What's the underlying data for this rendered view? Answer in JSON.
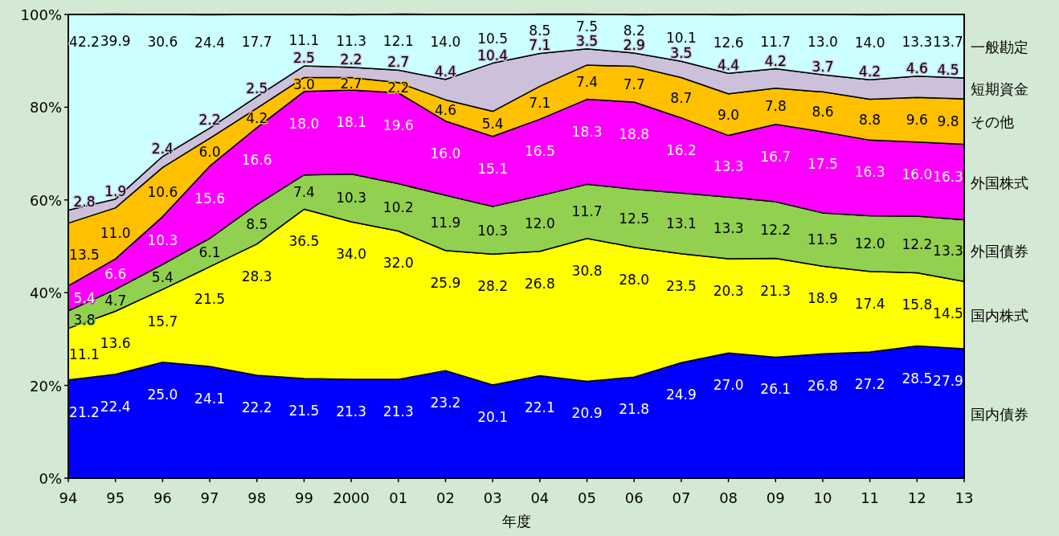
{
  "chart_data": {
    "type": "area",
    "stacked": true,
    "xlabel": "年度",
    "categories": [
      "94",
      "95",
      "96",
      "97",
      "98",
      "99",
      "2000",
      "01",
      "02",
      "03",
      "04",
      "05",
      "06",
      "07",
      "08",
      "09",
      "10",
      "11",
      "12",
      "13"
    ],
    "ylim": [
      0,
      100
    ],
    "yticks": [
      {
        "value": 0,
        "label": "0%"
      },
      {
        "value": 20,
        "label": "20%"
      },
      {
        "value": 40,
        "label": "40%"
      },
      {
        "value": 60,
        "label": "60%"
      },
      {
        "value": 80,
        "label": "80%"
      },
      {
        "value": 100,
        "label": "100%"
      }
    ],
    "grid": false,
    "series": [
      {
        "name": "国内債券",
        "color": "#0000ff",
        "values": [
          21.2,
          22.4,
          25.0,
          24.1,
          22.2,
          21.5,
          21.3,
          21.3,
          23.2,
          20.1,
          22.1,
          20.9,
          21.8,
          24.9,
          27.0,
          26.1,
          26.8,
          27.2,
          28.5,
          27.9
        ],
        "value_labels": [
          "21.2",
          "22.4",
          "25.0",
          "24.1",
          "22.2",
          "21.5",
          "21.3",
          "21.3",
          "23.2",
          "20.1",
          "22.1",
          "20.9",
          "21.8",
          "24.9",
          "27.0",
          "26.1",
          "26.8",
          "27.2",
          "28.5",
          "27.9"
        ]
      },
      {
        "name": "国内株式",
        "color": "#ffff00",
        "values": [
          11.1,
          13.6,
          15.7,
          21.5,
          28.3,
          36.5,
          34.0,
          32.0,
          25.9,
          28.2,
          26.8,
          30.8,
          28.0,
          23.5,
          20.3,
          21.3,
          18.9,
          17.4,
          15.8,
          14.5
        ],
        "value_labels": [
          "11.1",
          "13.6",
          "15.7",
          "21.5",
          "28.3",
          "36.5",
          "34.0",
          "32.0",
          "25.9",
          "28.2",
          "26.8",
          "30.8",
          "28.0",
          "23.5",
          "20.3",
          "21.3",
          "18.9",
          "17.4",
          "15.8",
          "14.5"
        ]
      },
      {
        "name": "外国債券",
        "color": "#92d050",
        "values": [
          3.8,
          4.7,
          5.4,
          6.1,
          8.5,
          7.4,
          10.3,
          10.2,
          11.9,
          10.3,
          12.0,
          11.7,
          12.5,
          13.1,
          13.3,
          12.2,
          11.5,
          12.0,
          12.2,
          13.3
        ],
        "value_labels": [
          "3.8",
          "4.7",
          "5.4",
          "6.1",
          "8.5",
          "7.4",
          "10.3",
          "10.2",
          "11.9",
          "10.3",
          "12.0",
          "11.7",
          "12.5",
          "13.1",
          "13.3",
          "12.2",
          "11.5",
          "12.0",
          "12.2",
          "13.3"
        ]
      },
      {
        "name": "外国株式",
        "color": "#ff00ff",
        "values": [
          5.4,
          6.6,
          10.3,
          15.6,
          16.6,
          18.0,
          18.1,
          19.6,
          16.0,
          15.1,
          16.5,
          18.3,
          18.8,
          16.2,
          13.3,
          16.7,
          17.5,
          16.3,
          16.0,
          16.3
        ],
        "value_labels": [
          "5.4",
          "6.6",
          "10.3",
          "15.6",
          "16.6",
          "18.0",
          "18.1",
          "19.6",
          "16.0",
          "15.1",
          "16.5",
          "18.3",
          "18.8",
          "16.2",
          "13.3",
          "16.7",
          "17.5",
          "16.3",
          "16.0",
          "16.3"
        ]
      },
      {
        "name": "その他",
        "color": "#ffc000",
        "values": [
          13.5,
          11.0,
          10.6,
          6.0,
          4.2,
          3.0,
          2.7,
          2.2,
          4.6,
          5.4,
          7.1,
          7.4,
          7.7,
          8.7,
          9.0,
          7.8,
          8.6,
          8.8,
          9.6,
          9.8
        ],
        "value_labels": [
          "13.5",
          "11.0",
          "10.6",
          "6.0",
          "4.2",
          "3.0",
          "2.7",
          "2.2",
          "4.6",
          "5.4",
          "7.1",
          "7.4",
          "7.7",
          "8.7",
          "9.0",
          "7.8",
          "8.6",
          "8.8",
          "9.6",
          "9.8"
        ]
      },
      {
        "name": "短期資金",
        "color": "#ccc0da",
        "values": [
          2.8,
          1.9,
          2.4,
          2.2,
          2.5,
          2.5,
          2.2,
          2.7,
          4.4,
          10.4,
          7.1,
          3.5,
          2.9,
          3.5,
          4.4,
          4.2,
          3.7,
          4.2,
          4.6,
          4.5
        ],
        "value_labels": [
          "2.8",
          "1.9",
          "2.4",
          "2.2",
          "2.5",
          "2.5",
          "2.2",
          "2.7",
          "4.4",
          "10.4",
          "7.1",
          "3.5",
          "2.9",
          "3.5",
          "4.4",
          "4.2",
          "3.7",
          "4.2",
          "4.6",
          "4.5"
        ]
      },
      {
        "name": "一般勘定",
        "color": "#ccffff",
        "values": [
          42.2,
          39.9,
          30.6,
          24.4,
          17.7,
          11.1,
          11.3,
          12.1,
          14.0,
          10.5,
          8.5,
          7.5,
          8.2,
          10.1,
          12.6,
          11.7,
          13.0,
          14.0,
          13.3,
          13.7
        ],
        "value_labels": [
          "42.2",
          "39.9",
          "30.6",
          "24.4",
          "17.7",
          "11.1",
          "11.3",
          "12.1",
          "14.0",
          "10.5",
          "8.5",
          "7.5",
          "8.2",
          "10.1",
          "12.6",
          "11.7",
          "13.0",
          "14.0",
          "13.3",
          "13.7"
        ]
      }
    ]
  }
}
